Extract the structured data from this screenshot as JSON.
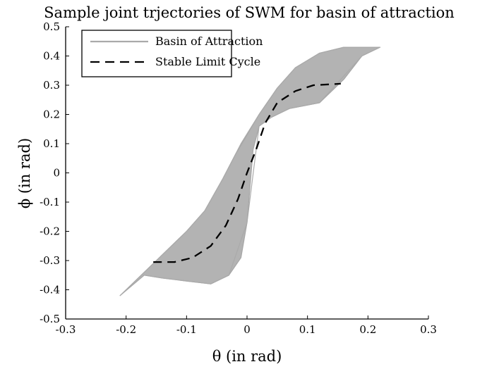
{
  "chart_data": {
    "type": "line",
    "title": "Sample joint trjectories of SWM for basin of attraction",
    "xlabel": "θ (in rad)",
    "ylabel": "ϕ (in rad)",
    "xlim": [
      -0.3,
      0.3
    ],
    "ylim": [
      -0.5,
      0.5
    ],
    "xticks": [
      -0.3,
      -0.2,
      -0.1,
      0,
      0.1,
      0.2,
      0.3
    ],
    "xtick_labels": [
      "-0.3",
      "-0.2",
      "-0.1",
      "0",
      "0.1",
      "0.2",
      "0.3"
    ],
    "yticks": [
      -0.5,
      -0.4,
      -0.3,
      -0.2,
      -0.1,
      0,
      0.1,
      0.2,
      0.3,
      0.4,
      0.5
    ],
    "ytick_labels": [
      "-0.5",
      "-0.4",
      "-0.3",
      "-0.2",
      "-0.1",
      "0",
      "0.1",
      "0.2",
      "0.3",
      "0.4",
      "0.5"
    ],
    "grid": false,
    "legend_position": "top-left",
    "series": [
      {
        "name": "Basin of Attraction",
        "style": "solid",
        "color": "#aaaaaa",
        "x": [
          -0.21,
          -0.15,
          -0.1,
          -0.07,
          -0.04,
          -0.01,
          0.02,
          0.05,
          0.08,
          0.12,
          0.16,
          0.2,
          0.22,
          0.19,
          0.12,
          0.07,
          0.04,
          0.02,
          0.0,
          -0.03,
          -0.06,
          -0.1,
          -0.14,
          -0.17
        ],
        "y": [
          -0.42,
          -0.3,
          -0.2,
          -0.13,
          -0.02,
          0.1,
          0.2,
          0.29,
          0.36,
          0.41,
          0.43,
          0.43,
          0.43,
          0.4,
          0.24,
          0.22,
          0.19,
          0.16,
          -0.17,
          -0.35,
          -0.38,
          -0.37,
          -0.36,
          -0.35
        ]
      },
      {
        "name": "Stable Limit Cycle",
        "style": "dashed",
        "color": "#000000",
        "x": [
          -0.155,
          -0.12,
          -0.09,
          -0.06,
          -0.035,
          -0.015,
          0.0,
          0.015,
          0.03,
          0.05,
          0.08,
          0.11,
          0.155
        ],
        "y": [
          -0.305,
          -0.305,
          -0.29,
          -0.25,
          -0.18,
          -0.09,
          0.0,
          0.08,
          0.17,
          0.24,
          0.28,
          0.3,
          0.305
        ]
      }
    ]
  },
  "basin_band": {
    "upper": {
      "x": [
        -0.21,
        -0.15,
        -0.1,
        -0.07,
        -0.04,
        -0.02,
        0.0,
        0.02,
        0.05,
        0.08,
        0.12,
        0.16,
        0.2,
        0.22
      ],
      "y": [
        -0.42,
        -0.3,
        -0.2,
        -0.13,
        -0.02,
        0.06,
        0.13,
        0.2,
        0.29,
        0.36,
        0.41,
        0.43,
        0.43,
        0.43
      ]
    },
    "lower": {
      "x": [
        0.22,
        0.19,
        0.16,
        0.12,
        0.07,
        0.04,
        0.02,
        0.01,
        0.0,
        -0.01,
        -0.03,
        -0.06,
        -0.1,
        -0.14,
        -0.17,
        -0.21
      ],
      "y": [
        0.43,
        0.4,
        0.32,
        0.24,
        0.22,
        0.19,
        0.16,
        0.08,
        -0.17,
        -0.29,
        -0.35,
        -0.38,
        -0.37,
        -0.36,
        -0.35,
        -0.42
      ]
    }
  }
}
